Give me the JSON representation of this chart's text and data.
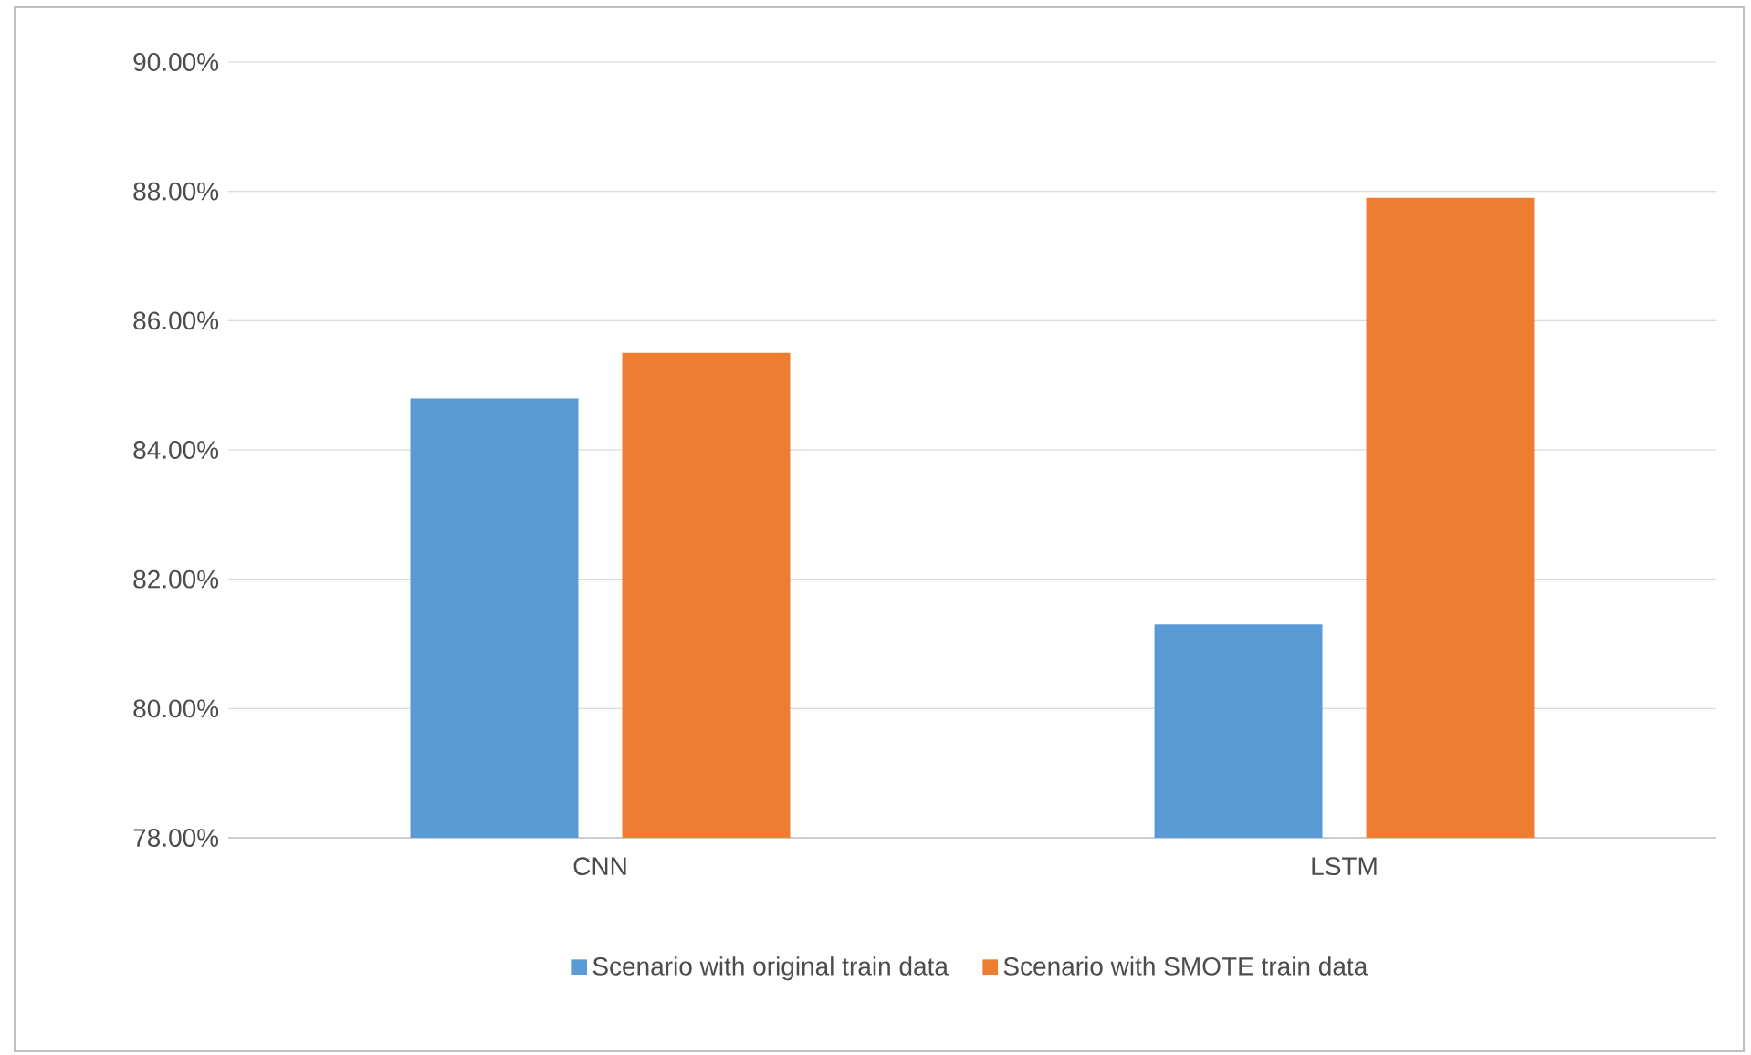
{
  "chart_data": {
    "type": "bar",
    "categories": [
      "CNN",
      "LSTM"
    ],
    "series": [
      {
        "name": "Scenario with original train data",
        "color": "#5b9bd5",
        "values": [
          84.8,
          81.3
        ]
      },
      {
        "name": "Scenario with SMOTE train data",
        "color": "#ed7d31",
        "values": [
          85.5,
          87.9
        ]
      }
    ],
    "ylim": [
      78,
      90
    ],
    "yticks": [
      {
        "value": 78,
        "label": "78.00%"
      },
      {
        "value": 80,
        "label": "80.00%"
      },
      {
        "value": 82,
        "label": "82.00%"
      },
      {
        "value": 84,
        "label": "84.00%"
      },
      {
        "value": 86,
        "label": "86.00%"
      },
      {
        "value": 88,
        "label": "88.00%"
      },
      {
        "value": 90,
        "label": "90.00%"
      }
    ],
    "grid": "y",
    "legend": "bottom"
  }
}
